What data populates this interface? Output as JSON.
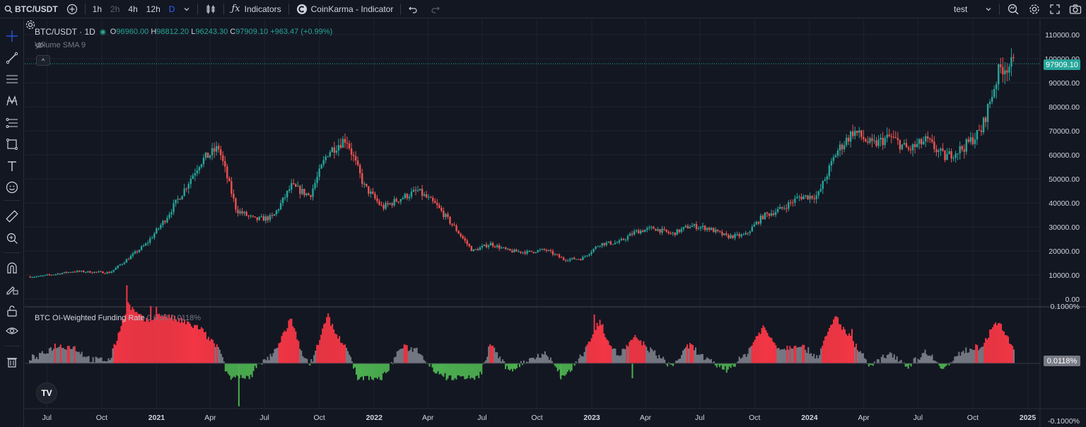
{
  "topbar": {
    "symbol": "BTC/USDT",
    "intervals": [
      "1h",
      "2h",
      "4h",
      "12h",
      "D"
    ],
    "indicators_label": "Indicators",
    "indicator_name": "CoinKarma - Indicator",
    "layout_name": "test"
  },
  "legend": {
    "title": "BTC/USDT · 1D",
    "o_label": "O",
    "o": "96960.00",
    "h_label": "H",
    "h": "98812.20",
    "l_label": "L",
    "l": "96243.30",
    "c_label": "C",
    "c": "97909.10",
    "change": "+963.47 (+0.99%)",
    "volume": "Volume SMA 9",
    "collapse": "^"
  },
  "funding": {
    "title": "BTC OI-Weighted Funding Rate",
    "params": "0 0.03",
    "value": "0.0118%"
  },
  "logo": "TV",
  "colors": {
    "up": "#26a69a",
    "down": "#ef5350",
    "bg": "#131722",
    "grid": "#1f2330",
    "neg_funding": "#4caf50",
    "pos_funding": "#f23645"
  },
  "chart_data": {
    "type": "candlestick",
    "last_price": "97909.10",
    "y_ticks": [
      "110000.00",
      "100000.00",
      "90000.00",
      "80000.00",
      "70000.00",
      "60000.00",
      "50000.00",
      "40000.00",
      "30000.00",
      "20000.00",
      "10000.00",
      "0.00"
    ],
    "x_ticks": [
      "Jul",
      "Oct",
      "2021",
      "Apr",
      "Jul",
      "Oct",
      "2022",
      "Apr",
      "Jul",
      "Oct",
      "2023",
      "Apr",
      "Jul",
      "Oct",
      "2024",
      "Apr",
      "Jul",
      "Oct",
      "2025"
    ],
    "price_path": [
      [
        "2020-06",
        9300
      ],
      [
        "2020-08",
        11500
      ],
      [
        "2020-10",
        11000
      ],
      [
        "2020-11",
        17000
      ],
      [
        "2020-12",
        23000
      ],
      [
        "2021-01",
        33000
      ],
      [
        "2021-02",
        45000
      ],
      [
        "2021-03",
        57000
      ],
      [
        "2021-04",
        63000
      ],
      [
        "2021-05",
        37000
      ],
      [
        "2021-06",
        33000
      ],
      [
        "2021-07",
        34000
      ],
      [
        "2021-08",
        47000
      ],
      [
        "2021-09",
        43000
      ],
      [
        "2021-10",
        61000
      ],
      [
        "2021-11",
        67000
      ],
      [
        "2021-12",
        47000
      ],
      [
        "2022-01",
        38000
      ],
      [
        "2022-02",
        42000
      ],
      [
        "2022-03",
        45000
      ],
      [
        "2022-04",
        39000
      ],
      [
        "2022-05",
        30000
      ],
      [
        "2022-06",
        20000
      ],
      [
        "2022-07",
        23000
      ],
      [
        "2022-08",
        20000
      ],
      [
        "2022-09",
        19500
      ],
      [
        "2022-10",
        20500
      ],
      [
        "2022-11",
        16500
      ],
      [
        "2022-12",
        16800
      ],
      [
        "2023-01",
        23000
      ],
      [
        "2023-02",
        23500
      ],
      [
        "2023-03",
        28000
      ],
      [
        "2023-04",
        29500
      ],
      [
        "2023-05",
        27000
      ],
      [
        "2023-06",
        30500
      ],
      [
        "2023-07",
        29500
      ],
      [
        "2023-08",
        26000
      ],
      [
        "2023-09",
        26500
      ],
      [
        "2023-10",
        34500
      ],
      [
        "2023-11",
        37500
      ],
      [
        "2023-12",
        42500
      ],
      [
        "2024-01",
        43000
      ],
      [
        "2024-02",
        61000
      ],
      [
        "2024-03",
        70000
      ],
      [
        "2024-04",
        64000
      ],
      [
        "2024-05",
        67500
      ],
      [
        "2024-06",
        62000
      ],
      [
        "2024-07",
        66000
      ],
      [
        "2024-08",
        59000
      ],
      [
        "2024-09",
        63000
      ],
      [
        "2024-10",
        70000
      ],
      [
        "2024-11",
        96000
      ],
      [
        "2024-12-10",
        97909
      ]
    ],
    "funding_ticks": [
      "0.1000%",
      "0.0118%",
      "-0.1000%"
    ],
    "funding_last": "0.0118%"
  }
}
